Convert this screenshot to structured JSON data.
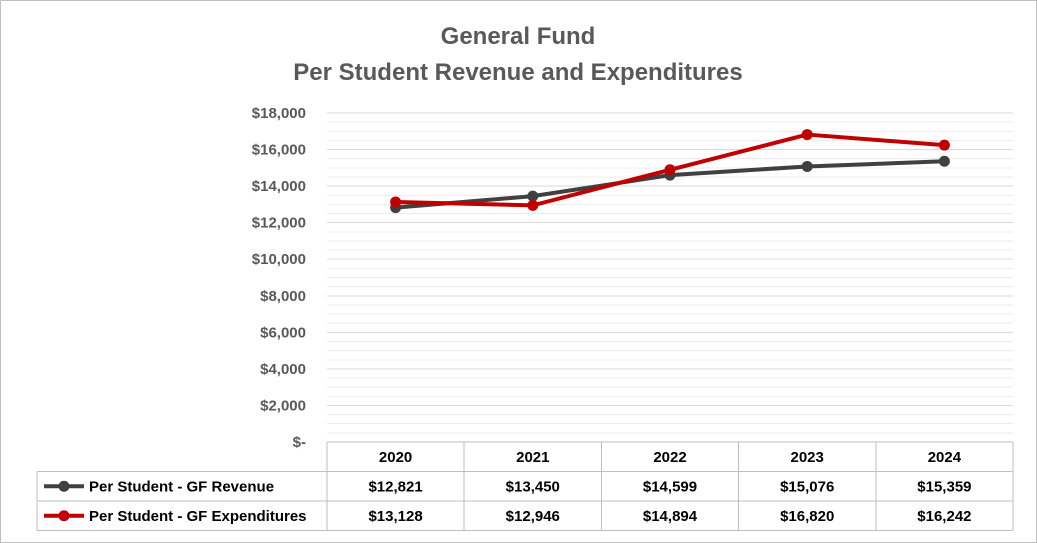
{
  "chart_data": {
    "type": "line",
    "title": "General Fund",
    "subtitle": "Per Student Revenue and Expenditures",
    "categories": [
      "2020",
      "2021",
      "2022",
      "2023",
      "2024"
    ],
    "ylim": [
      0,
      18000
    ],
    "y_ticks": [
      {
        "value": 0,
        "label": "$-"
      },
      {
        "value": 2000,
        "label": "$2,000"
      },
      {
        "value": 4000,
        "label": "$4,000"
      },
      {
        "value": 6000,
        "label": "$6,000"
      },
      {
        "value": 8000,
        "label": "$8,000"
      },
      {
        "value": 10000,
        "label": "$10,000"
      },
      {
        "value": 12000,
        "label": "$12,000"
      },
      {
        "value": 14000,
        "label": "$14,000"
      },
      {
        "value": 16000,
        "label": "$16,000"
      },
      {
        "value": 18000,
        "label": "$18,000"
      }
    ],
    "grid": true,
    "legend": "data-table",
    "series": [
      {
        "name": "Per Student - GF Revenue",
        "color": "#404040",
        "values": [
          12821,
          13450,
          14599,
          15076,
          15359
        ],
        "labels": [
          "$12,821",
          "$13,450",
          "$14,599",
          "$15,076",
          "$15,359"
        ]
      },
      {
        "name": "Per Student - GF Expenditures",
        "color": "#c00000",
        "values": [
          13128,
          12946,
          14894,
          16820,
          16242
        ],
        "labels": [
          "$13,128",
          "$12,946",
          "$14,894",
          "$16,820",
          "$16,242"
        ]
      }
    ]
  }
}
